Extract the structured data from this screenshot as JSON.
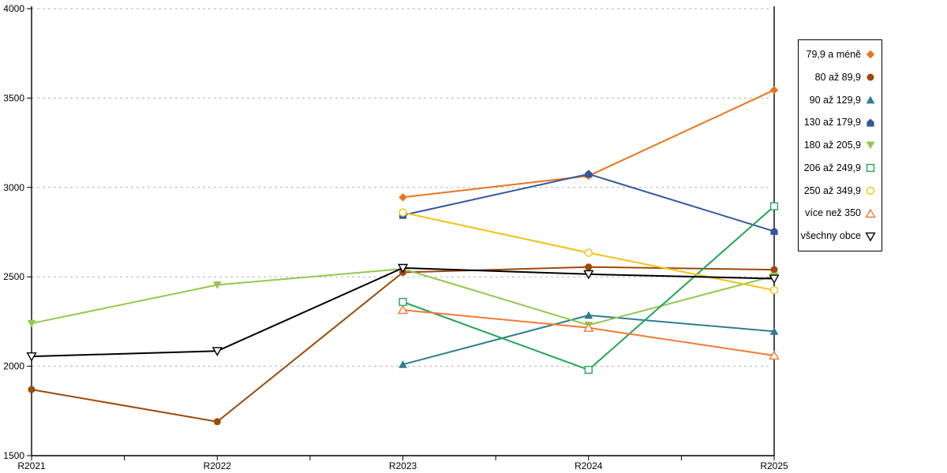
{
  "chart_data": {
    "type": "line",
    "title": "",
    "xlabel": "",
    "ylabel": "",
    "categories": [
      "R2021",
      "R2022",
      "R2023",
      "R2024",
      "R2025"
    ],
    "y_tick_labels": [
      "1500",
      "2000",
      "2500",
      "3000",
      "3500",
      "4000"
    ],
    "ylim": [
      1500,
      4000
    ],
    "ytick_step": 500,
    "grid": "horizontal-dashed",
    "grid_color": "#b3b3b3",
    "axis_color": "#000000",
    "legend_position": "right",
    "series": [
      {
        "name": "79,9 a méně",
        "color": "#E8751A",
        "marker": "diamond",
        "fill": "solid",
        "values": [
          null,
          null,
          2945,
          3065,
          3545
        ]
      },
      {
        "name": "80 až 89,9",
        "color": "#9C4A0B",
        "marker": "circle",
        "fill": "solid",
        "values": [
          1870,
          1690,
          2525,
          2555,
          2540
        ]
      },
      {
        "name": "90 až 129,9",
        "color": "#2E7D91",
        "marker": "triangle-up",
        "fill": "solid",
        "values": [
          null,
          null,
          2010,
          2285,
          2195
        ]
      },
      {
        "name": "130 až 179,9",
        "color": "#33589B",
        "marker": "pentagon",
        "fill": "solid",
        "values": [
          null,
          null,
          2845,
          3075,
          2755
        ]
      },
      {
        "name": "180 až 205,9",
        "color": "#92C84E",
        "marker": "triangle-down",
        "fill": "solid",
        "values": [
          2240,
          2455,
          2545,
          2230,
          2505
        ]
      },
      {
        "name": "206 až 249,9",
        "color": "#21A657",
        "marker": "square",
        "fill": "open",
        "values": [
          null,
          null,
          2360,
          1980,
          2895
        ]
      },
      {
        "name": "250 až 349,9",
        "color": "#F2C314",
        "marker": "circle",
        "fill": "open",
        "values": [
          null,
          null,
          2860,
          2635,
          2425
        ]
      },
      {
        "name": "více než 350",
        "color": "#F07A33",
        "marker": "triangle-up",
        "fill": "open",
        "values": [
          null,
          null,
          2315,
          2215,
          2060
        ]
      },
      {
        "name": "všechny obce",
        "color": "#000000",
        "marker": "triangle-down",
        "fill": "open",
        "values": [
          2055,
          2085,
          2550,
          2515,
          2490
        ]
      }
    ]
  }
}
